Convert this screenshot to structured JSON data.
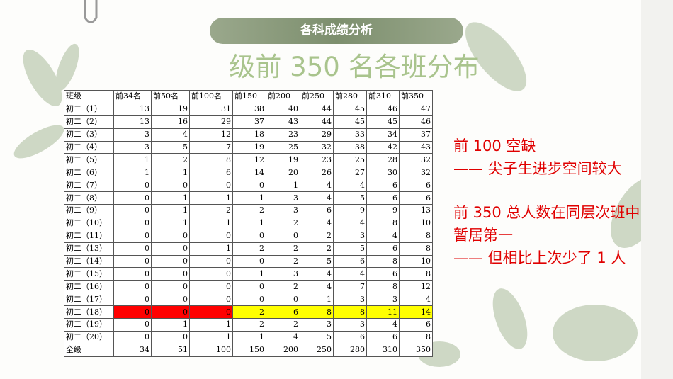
{
  "header": {
    "badge": "各科成绩分析",
    "title": "级前 350 名各班分布"
  },
  "table": {
    "columns": [
      "班级",
      "前34名",
      "前50名",
      "前100名",
      "前150",
      "前200",
      "前250",
      "前280",
      "前310",
      "前350"
    ],
    "rows": [
      [
        "初二（1）",
        13,
        19,
        31,
        38,
        40,
        44,
        45,
        46,
        47
      ],
      [
        "初二（2）",
        13,
        16,
        29,
        37,
        43,
        44,
        45,
        45,
        46
      ],
      [
        "初二（3）",
        3,
        4,
        12,
        18,
        23,
        29,
        33,
        34,
        37
      ],
      [
        "初二（4）",
        3,
        5,
        7,
        19,
        25,
        32,
        38,
        42,
        43
      ],
      [
        "初二（5）",
        1,
        2,
        8,
        12,
        19,
        23,
        25,
        28,
        32
      ],
      [
        "初二（6）",
        1,
        1,
        6,
        14,
        20,
        26,
        27,
        30,
        32
      ],
      [
        "初二（7）",
        0,
        0,
        0,
        0,
        1,
        4,
        4,
        6,
        6
      ],
      [
        "初二（8）",
        0,
        1,
        1,
        1,
        3,
        4,
        5,
        6,
        6
      ],
      [
        "初二（9）",
        0,
        1,
        2,
        2,
        3,
        6,
        9,
        9,
        13
      ],
      [
        "初二（10）",
        0,
        1,
        1,
        1,
        2,
        4,
        4,
        8,
        10
      ],
      [
        "初二（11）",
        0,
        0,
        0,
        0,
        0,
        2,
        3,
        4,
        8
      ],
      [
        "初二（13）",
        0,
        0,
        1,
        2,
        2,
        2,
        5,
        6,
        8
      ],
      [
        "初二（14）",
        0,
        0,
        0,
        0,
        2,
        5,
        6,
        8,
        10
      ],
      [
        "初二（15）",
        0,
        0,
        0,
        1,
        3,
        4,
        4,
        6,
        8
      ],
      [
        "初二（16）",
        0,
        0,
        0,
        0,
        2,
        4,
        7,
        8,
        12
      ],
      [
        "初二（17）",
        0,
        0,
        0,
        0,
        0,
        1,
        3,
        3,
        4
      ],
      [
        "初二（18）",
        0,
        0,
        0,
        2,
        6,
        8,
        8,
        11,
        14
      ],
      [
        "初二（19）",
        0,
        1,
        1,
        2,
        2,
        3,
        3,
        4,
        6
      ],
      [
        "初二（20）",
        0,
        0,
        1,
        1,
        4,
        5,
        6,
        6,
        8
      ],
      [
        "全级",
        34,
        51,
        100,
        150,
        200,
        250,
        280,
        310,
        350
      ]
    ]
  },
  "notes": [
    "前 100 空缺",
    "—— 尖子生进步空间较大",
    "前 350 总人数在同层次班中暂居第一",
    "—— 但相比上次少了 1 人"
  ]
}
